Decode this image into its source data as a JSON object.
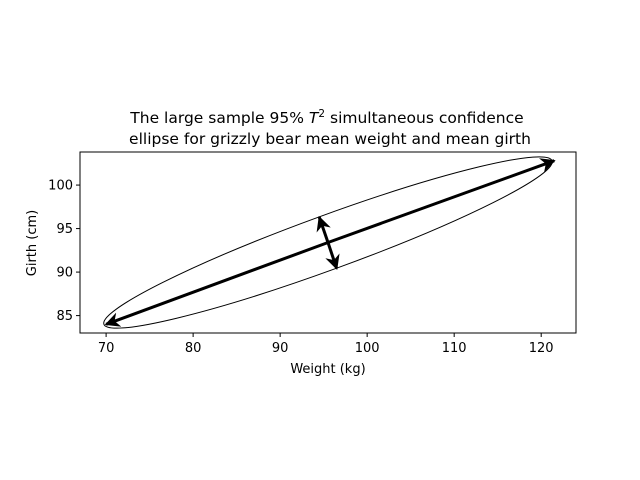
{
  "chart_data": {
    "type": "scatter",
    "title_line1_prefix": "The large sample 95% ",
    "title_math_base": "T",
    "title_math_sup": "2",
    "title_line1_suffix": " simultaneous confidence",
    "title_line2": "ellipse for grizzly bear mean weight and mean girth",
    "xlabel": "Weight (kg)",
    "ylabel": "Girth (cm)",
    "xlim": [
      67,
      124
    ],
    "ylim": [
      83,
      103.8
    ],
    "xticks": [
      70,
      80,
      90,
      100,
      110,
      120
    ],
    "yticks": [
      85,
      90,
      95,
      100
    ],
    "grid": false,
    "ellipse": {
      "center": [
        95.5,
        93.4
      ],
      "endpoints_major": [
        [
          70,
          84
        ],
        [
          121.5,
          102.8
        ]
      ],
      "endpoints_minor": [
        [
          94.5,
          96.3
        ],
        [
          96.5,
          90.4
        ]
      ],
      "stroke": "#000000"
    },
    "axis_arrows": [
      {
        "name": "major-axis-arrow",
        "from": [
          95.5,
          93.4
        ],
        "to": [
          70,
          84
        ]
      },
      {
        "name": "major-axis-arrow",
        "from": [
          95.5,
          93.4
        ],
        "to": [
          121.5,
          102.8
        ]
      },
      {
        "name": "minor-axis-arrow",
        "from": [
          95.5,
          93.4
        ],
        "to": [
          94.5,
          96.3
        ]
      },
      {
        "name": "minor-axis-arrow",
        "from": [
          95.5,
          93.4
        ],
        "to": [
          96.5,
          90.4
        ]
      }
    ]
  }
}
